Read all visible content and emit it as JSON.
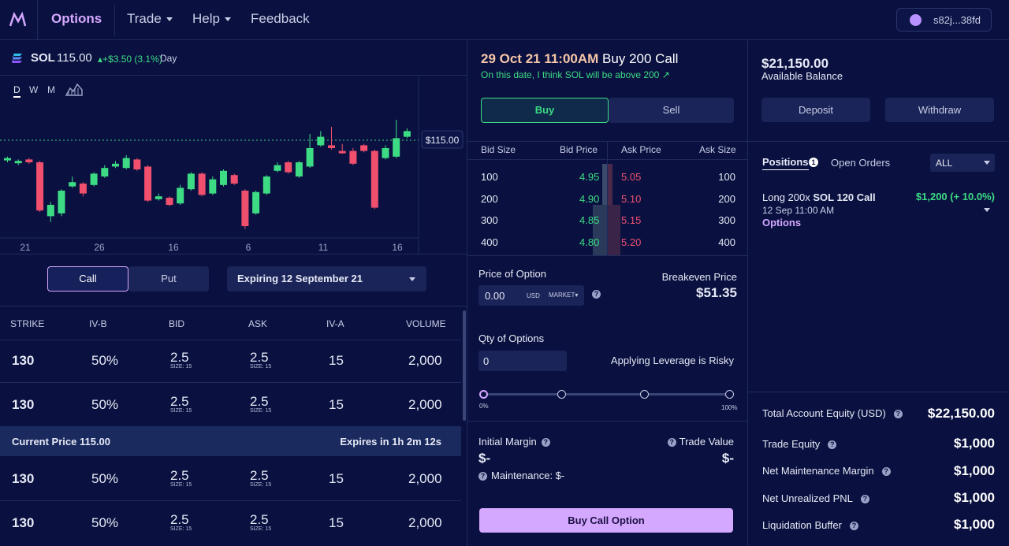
{
  "nav": {
    "brand": "Options",
    "trade": "Trade",
    "help": "Help",
    "feedback": "Feedback",
    "wallet": "s82j...38fd"
  },
  "ticker": {
    "symbol": "SOL",
    "price": "115.00",
    "change": "+$3.50 (3.1%)",
    "period": "Day"
  },
  "chart_tabs": [
    "D",
    "W",
    "M"
  ],
  "chart_data": {
    "type": "candlestick",
    "x_ticks": [
      "21",
      "26",
      "16",
      "6",
      "11",
      "16"
    ],
    "current_price_label": "$115.00",
    "candles": [
      {
        "o": 0.52,
        "c": 0.53,
        "h": 0.54,
        "l": 0.5
      },
      {
        "o": 0.5,
        "c": 0.51,
        "h": 0.52,
        "l": 0.48
      },
      {
        "o": 0.52,
        "c": 0.5,
        "h": 0.53,
        "l": 0.49
      },
      {
        "o": 0.5,
        "c": 0.16,
        "h": 0.51,
        "l": 0.15
      },
      {
        "o": 0.12,
        "c": 0.2,
        "h": 0.22,
        "l": 0.08
      },
      {
        "o": 0.14,
        "c": 0.3,
        "h": 0.31,
        "l": 0.12
      },
      {
        "o": 0.33,
        "c": 0.36,
        "h": 0.4,
        "l": 0.32
      },
      {
        "o": 0.35,
        "c": 0.28,
        "h": 0.36,
        "l": 0.26
      },
      {
        "o": 0.34,
        "c": 0.42,
        "h": 0.43,
        "l": 0.33
      },
      {
        "o": 0.4,
        "c": 0.46,
        "h": 0.48,
        "l": 0.39
      },
      {
        "o": 0.47,
        "c": 0.49,
        "h": 0.51,
        "l": 0.46
      },
      {
        "o": 0.46,
        "c": 0.53,
        "h": 0.55,
        "l": 0.45
      },
      {
        "o": 0.52,
        "c": 0.45,
        "h": 0.53,
        "l": 0.44
      },
      {
        "o": 0.47,
        "c": 0.23,
        "h": 0.48,
        "l": 0.22
      },
      {
        "o": 0.24,
        "c": 0.26,
        "h": 0.28,
        "l": 0.23
      },
      {
        "o": 0.25,
        "c": 0.2,
        "h": 0.26,
        "l": 0.19
      },
      {
        "o": 0.21,
        "c": 0.32,
        "h": 0.34,
        "l": 0.2
      },
      {
        "o": 0.31,
        "c": 0.42,
        "h": 0.43,
        "l": 0.3
      },
      {
        "o": 0.42,
        "c": 0.27,
        "h": 0.43,
        "l": 0.26
      },
      {
        "o": 0.28,
        "c": 0.38,
        "h": 0.4,
        "l": 0.27
      },
      {
        "o": 0.34,
        "c": 0.44,
        "h": 0.45,
        "l": 0.33
      },
      {
        "o": 0.41,
        "c": 0.35,
        "h": 0.42,
        "l": 0.34
      },
      {
        "o": 0.3,
        "c": 0.05,
        "h": 0.31,
        "l": 0.03
      },
      {
        "o": 0.14,
        "c": 0.29,
        "h": 0.3,
        "l": 0.13
      },
      {
        "o": 0.28,
        "c": 0.4,
        "h": 0.41,
        "l": 0.27
      },
      {
        "o": 0.44,
        "c": 0.48,
        "h": 0.5,
        "l": 0.43
      },
      {
        "o": 0.5,
        "c": 0.43,
        "h": 0.51,
        "l": 0.42
      },
      {
        "o": 0.4,
        "c": 0.5,
        "h": 0.51,
        "l": 0.39
      },
      {
        "o": 0.47,
        "c": 0.6,
        "h": 0.7,
        "l": 0.46
      },
      {
        "o": 0.62,
        "c": 0.68,
        "h": 0.72,
        "l": 0.61
      },
      {
        "o": 0.62,
        "c": 0.6,
        "h": 0.75,
        "l": 0.59
      },
      {
        "o": 0.58,
        "c": 0.57,
        "h": 0.63,
        "l": 0.56
      },
      {
        "o": 0.58,
        "c": 0.49,
        "h": 0.6,
        "l": 0.48
      },
      {
        "o": 0.62,
        "c": 0.58,
        "h": 0.63,
        "l": 0.57
      },
      {
        "o": 0.58,
        "c": 0.18,
        "h": 0.59,
        "l": 0.17
      },
      {
        "o": 0.53,
        "c": 0.6,
        "h": 0.62,
        "l": 0.52
      },
      {
        "o": 0.54,
        "c": 0.67,
        "h": 0.8,
        "l": 0.53
      },
      {
        "o": 0.68,
        "c": 0.72,
        "h": 0.74,
        "l": 0.67
      }
    ]
  },
  "option_type": {
    "call": "Call",
    "put": "Put",
    "expiry": "Expiring 12 September 21"
  },
  "table": {
    "headers": [
      "STRIKE",
      "IV-B",
      "BID",
      "ASK",
      "IV-A",
      "VOLUME"
    ],
    "rows": [
      {
        "strike": "130",
        "ivb": "50%",
        "bid": "2.5",
        "bid_size": "SIZE: 15",
        "ask": "2.5",
        "ask_size": "SIZE: 15",
        "iva": "15",
        "volume": "2,000"
      },
      {
        "strike": "130",
        "ivb": "50%",
        "bid": "2.5",
        "bid_size": "SIZE: 15",
        "ask": "2.5",
        "ask_size": "SIZE: 15",
        "iva": "15",
        "volume": "2,000"
      },
      {
        "strike": "130",
        "ivb": "50%",
        "bid": "2.5",
        "bid_size": "SIZE: 15",
        "ask": "2.5",
        "ask_size": "SIZE: 15",
        "iva": "15",
        "volume": "2,000"
      },
      {
        "strike": "130",
        "ivb": "50%",
        "bid": "2.5",
        "bid_size": "SIZE: 15",
        "ask": "2.5",
        "ask_size": "SIZE: 15",
        "iva": "15",
        "volume": "2,000"
      }
    ],
    "current_price": "Current Price 115.00",
    "expires": "Expires in 1h 2m 12s"
  },
  "order": {
    "date": "29 Oct 21 11:00AM",
    "action": "Buy 200 Call",
    "thesis": "On this date, I think SOL will be above 200",
    "buy": "Buy",
    "sell": "Sell"
  },
  "book": {
    "headers": [
      "Bid Size",
      "Bid Price",
      "Ask Price",
      "Ask Size"
    ],
    "rows": [
      {
        "bid_size": "100",
        "bid": "4.95",
        "ask": "5.05",
        "ask_size": "100"
      },
      {
        "bid_size": "200",
        "bid": "4.90",
        "ask": "5.10",
        "ask_size": "200"
      },
      {
        "bid_size": "300",
        "bid": "4.85",
        "ask": "5.15",
        "ask_size": "300"
      },
      {
        "bid_size": "400",
        "bid": "4.80",
        "ask": "5.20",
        "ask_size": "400"
      }
    ]
  },
  "form": {
    "price_label": "Price of Option",
    "price_value": "0.00",
    "currency": "USD",
    "order_type": "MARKET",
    "breakeven_label": "Breakeven Price",
    "breakeven_value": "$51.35",
    "qty_label": "Qty of Options",
    "qty_value": "0",
    "leverage_note": "Applying Leverage is Risky",
    "slider_min": "0%",
    "slider_max": "100%",
    "slider_value": 0.0,
    "initial_margin_label": "Initial Margin",
    "initial_margin_value": "$-",
    "trade_value_label": "Trade Value",
    "trade_value_value": "$-",
    "maintenance": "Maintenance: $-",
    "submit": "Buy Call Option"
  },
  "account": {
    "balance": "$21,150.00",
    "balance_label": "Available Balance",
    "deposit": "Deposit",
    "withdraw": "Withdraw",
    "positions_tab": "Positions",
    "positions_count": "1",
    "orders_tab": "Open Orders",
    "filter": "ALL",
    "position": {
      "title_prefix": "Long 200x",
      "title_main": "SOL 120 Call",
      "pnl": "$1,200 (+ 10.0%)",
      "date": "12 Sep 11:00 AM",
      "link": "Options"
    },
    "metrics": [
      {
        "label": "Total Account Equity (USD)",
        "value": "$22,150.00"
      },
      {
        "label": "Trade Equity",
        "value": "$1,000"
      },
      {
        "label": "Net Maintenance Margin",
        "value": "$1,000"
      },
      {
        "label": "Net Unrealized PNL",
        "value": "$1,000"
      },
      {
        "label": "Liquidation Buffer",
        "value": "$1,000"
      }
    ]
  },
  "colors": {
    "bg": "#0a1140",
    "green": "#3ddc84",
    "red": "#f0506e",
    "accent": "#d5a8ff"
  }
}
